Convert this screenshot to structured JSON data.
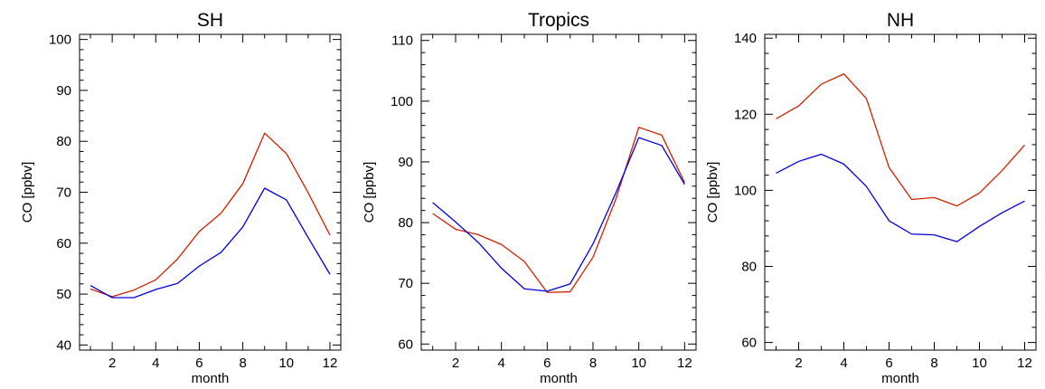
{
  "colors": {
    "red_series": "#cc2200",
    "blue_series": "#0000dd",
    "axes": "#000000",
    "background": "#ffffff"
  },
  "chart_data": [
    {
      "type": "line",
      "title": "SH",
      "xlabel": "month",
      "ylabel": "CO [ppbv]",
      "xlim": [
        0.5,
        12.5
      ],
      "ylim": [
        39,
        101
      ],
      "xticks": [
        2,
        4,
        6,
        8,
        10,
        12
      ],
      "yticks": [
        40,
        50,
        60,
        70,
        80,
        90,
        100
      ],
      "x": [
        1,
        2,
        3,
        4,
        5,
        6,
        7,
        8,
        9,
        10,
        11,
        12
      ],
      "series": [
        {
          "color": "#cc2200",
          "values": [
            51.0,
            49.5,
            50.8,
            52.8,
            56.9,
            62.3,
            65.9,
            71.7,
            81.6,
            77.6,
            69.9,
            61.6
          ]
        },
        {
          "color": "#0000dd",
          "values": [
            51.7,
            49.3,
            49.3,
            50.9,
            52.1,
            55.5,
            58.2,
            63.2,
            70.8,
            68.5,
            61.1,
            53.9
          ]
        }
      ]
    },
    {
      "type": "line",
      "title": "Tropics",
      "xlabel": "month",
      "ylabel": "CO [ppbv]",
      "xlim": [
        0.5,
        12.5
      ],
      "ylim": [
        59,
        111
      ],
      "xticks": [
        2,
        4,
        6,
        8,
        10,
        12
      ],
      "yticks": [
        60,
        70,
        80,
        90,
        100,
        110
      ],
      "x": [
        1,
        2,
        3,
        4,
        5,
        6,
        7,
        8,
        9,
        10,
        11,
        12
      ],
      "series": [
        {
          "color": "#cc2200",
          "values": [
            81.5,
            78.9,
            78.0,
            76.4,
            73.6,
            68.5,
            68.6,
            74.3,
            83.9,
            95.7,
            94.4,
            86.6
          ]
        },
        {
          "color": "#0000dd",
          "values": [
            83.3,
            80.1,
            76.7,
            72.5,
            69.1,
            68.7,
            69.9,
            76.5,
            84.9,
            94.0,
            92.7,
            86.3
          ]
        }
      ]
    },
    {
      "type": "line",
      "title": "NH",
      "xlabel": "month",
      "ylabel": "CO [ppbv]",
      "xlim": [
        0.5,
        12.5
      ],
      "ylim": [
        58,
        141
      ],
      "xticks": [
        2,
        4,
        6,
        8,
        10,
        12
      ],
      "yticks": [
        60,
        80,
        100,
        120,
        140
      ],
      "x": [
        1,
        2,
        3,
        4,
        5,
        6,
        7,
        8,
        9,
        10,
        11,
        12
      ],
      "series": [
        {
          "color": "#cc2200",
          "values": [
            118.8,
            122.2,
            127.9,
            130.6,
            124.1,
            106.0,
            97.6,
            98.1,
            95.9,
            99.3,
            105.2,
            111.9
          ]
        },
        {
          "color": "#0000dd",
          "values": [
            104.5,
            107.6,
            109.5,
            106.9,
            101.0,
            92.0,
            88.5,
            88.3,
            86.5,
            90.5,
            94.1,
            97.2
          ]
        }
      ]
    }
  ]
}
